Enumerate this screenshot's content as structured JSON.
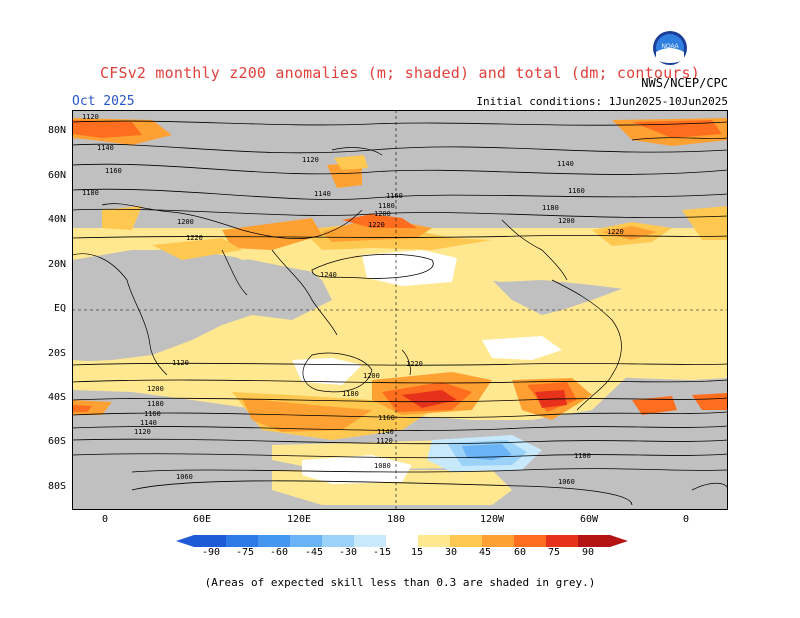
{
  "title": "CFSv2 monthly z200 anomalies (m; shaded) and total (dm; contours)",
  "month": "Oct 2025",
  "agency": "NWS/NCEP/CPC",
  "initial_conditions": "Initial conditions: 1Jun2025-10Jun2025",
  "logo_label": "NOAA",
  "lat_labels": [
    "80N",
    "60N",
    "40N",
    "20N",
    "EQ",
    "20S",
    "40S",
    "60S",
    "80S"
  ],
  "lon_labels": [
    "0",
    "60E",
    "120E",
    "180",
    "120W",
    "60W",
    "0"
  ],
  "colorbar": {
    "labels": [
      "-90",
      "-75",
      "-60",
      "-45",
      "-30",
      "-15",
      "15",
      "30",
      "45",
      "60",
      "75",
      "90"
    ],
    "colors": [
      "#1e5ad6",
      "#2e7ae6",
      "#4596ee",
      "#6ab4f6",
      "#9ad2fa",
      "#c8e8fc",
      "#ffffff",
      "#ffe890",
      "#ffc850",
      "#ffa032",
      "#ff6e1e",
      "#e6321a",
      "#b41414"
    ]
  },
  "note": "(Areas of expected skill less than 0.3 are shaded in grey.)",
  "contour_labels": [
    "1120",
    "1140",
    "1160",
    "1180",
    "1200",
    "1220",
    "1240",
    "1120",
    "1140",
    "1160",
    "1180",
    "1200",
    "1220",
    "1220",
    "1200",
    "1180",
    "1160",
    "1140",
    "1120",
    "1080",
    "1060",
    "1080",
    "1200",
    "1180",
    "1160",
    "1140",
    "1120",
    "1100",
    "1060",
    "1220",
    "1200",
    "1180",
    "1160",
    "1140",
    "1120"
  ]
}
